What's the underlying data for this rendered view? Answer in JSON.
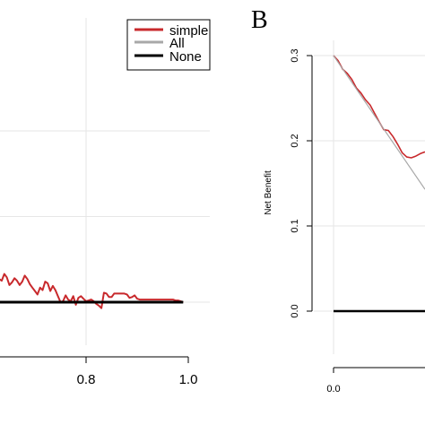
{
  "chart_data": [
    {
      "type": "line",
      "panel": "A",
      "panel_label": "",
      "xlabel": "",
      "ylabel": "",
      "xlim": [
        0.6,
        1.0
      ],
      "ylim": [
        -0.1,
        0.3
      ],
      "x_ticks": [
        0.8,
        1.0
      ],
      "x_tick_labels": [
        "0.8",
        "1.0"
      ],
      "grid": true,
      "legend": {
        "placement": "top-right",
        "entries": [
          {
            "label": "simple",
            "color": "#c8292c"
          },
          {
            "label": "All",
            "color": "#a8a8a8"
          },
          {
            "label": "None",
            "color": "#000000"
          }
        ]
      },
      "series": [
        {
          "name": "simple",
          "color": "#c8292c",
          "x": [
            0.6,
            0.605,
            0.61,
            0.615,
            0.62,
            0.625,
            0.63,
            0.635,
            0.64,
            0.645,
            0.65,
            0.655,
            0.66,
            0.665,
            0.67,
            0.675,
            0.68,
            0.685,
            0.69,
            0.695,
            0.7,
            0.705,
            0.71,
            0.715,
            0.72,
            0.725,
            0.73,
            0.735,
            0.74,
            0.745,
            0.75,
            0.755,
            0.76,
            0.765,
            0.77,
            0.775,
            0.78,
            0.785,
            0.79,
            0.795,
            0.8,
            0.805,
            0.81,
            0.815,
            0.82,
            0.825,
            0.83,
            0.835,
            0.84,
            0.845,
            0.85,
            0.855,
            0.86,
            0.865,
            0.87,
            0.875,
            0.88,
            0.885,
            0.89,
            0.895,
            0.9,
            0.905,
            0.91,
            0.915,
            0.92,
            0.925,
            0.93,
            0.935,
            0.94,
            0.945,
            0.95,
            0.955,
            0.96,
            0.965,
            0.97,
            0.975,
            0.98,
            0.985,
            0.99
          ],
          "y": [
            0.047,
            0.045,
            0.038,
            0.032,
            0.037,
            0.03,
            0.027,
            0.025,
            0.033,
            0.029,
            0.02,
            0.023,
            0.028,
            0.025,
            0.02,
            0.024,
            0.031,
            0.027,
            0.021,
            0.017,
            0.013,
            0.009,
            0.017,
            0.014,
            0.024,
            0.022,
            0.013,
            0.019,
            0.014,
            0.007,
            0.0,
            0.001,
            0.008,
            0.003,
            0.001,
            0.007,
            -0.003,
            0.005,
            0.007,
            0.004,
            0.001,
            0.002,
            0.003,
            0.001,
            -0.002,
            -0.004,
            -0.007,
            0.011,
            0.01,
            0.006,
            0.006,
            0.01,
            0.01,
            0.01,
            0.01,
            0.01,
            0.009,
            0.005,
            0.006,
            0.008,
            0.004,
            0.003,
            0.003,
            0.003,
            0.003,
            0.003,
            0.003,
            0.003,
            0.003,
            0.003,
            0.003,
            0.003,
            0.003,
            0.003,
            0.003,
            0.002,
            0.002,
            0.001,
            0.0
          ]
        },
        {
          "name": "None",
          "color": "#000000",
          "x": [
            0.6,
            0.99
          ],
          "y": [
            0.0,
            0.0
          ]
        }
      ]
    },
    {
      "type": "line",
      "panel": "B",
      "panel_label": "B",
      "xlabel": "",
      "ylabel": "Net Benefit",
      "xlim": [
        0.0,
        0.2
      ],
      "ylim": [
        -0.05,
        0.3
      ],
      "y_ticks": [
        0.0,
        0.1,
        0.2,
        0.3
      ],
      "y_tick_labels": [
        "0.0",
        "0.1",
        "0.2",
        "0.3"
      ],
      "x_ticks": [
        0.0
      ],
      "x_tick_labels": [
        "0.0"
      ],
      "grid": true,
      "series": [
        {
          "name": "simple",
          "color": "#c8292c",
          "x": [
            0.0,
            0.005,
            0.01,
            0.015,
            0.02,
            0.025,
            0.03,
            0.035,
            0.04,
            0.045,
            0.05,
            0.055,
            0.06,
            0.065,
            0.07,
            0.075,
            0.08,
            0.085,
            0.09,
            0.095,
            0.1
          ],
          "y": [
            0.3,
            0.294,
            0.284,
            0.279,
            0.272,
            0.262,
            0.256,
            0.248,
            0.242,
            0.232,
            0.222,
            0.213,
            0.212,
            0.205,
            0.196,
            0.186,
            0.181,
            0.18,
            0.182,
            0.185,
            0.187
          ]
        },
        {
          "name": "All",
          "color": "#a8a8a8",
          "x": [
            0.0,
            0.1
          ],
          "y": [
            0.3,
            0.143
          ]
        },
        {
          "name": "None",
          "color": "#000000",
          "x": [
            0.0,
            0.1
          ],
          "y": [
            0.0,
            0.0
          ]
        }
      ]
    }
  ]
}
